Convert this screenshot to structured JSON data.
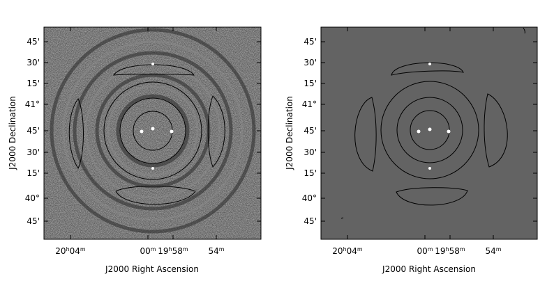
{
  "panels": [
    {
      "id": "left",
      "style": "noise",
      "ylabel": "J2000 Declination",
      "xlabel": "J2000 Right Ascension",
      "y_ticks": [
        {
          "label": "45'"
        },
        {
          "label": "30'"
        },
        {
          "label": "15'"
        },
        {
          "label": "41°"
        },
        {
          "label": "45'"
        },
        {
          "label": "30'"
        },
        {
          "label": "15'"
        },
        {
          "label": "40°"
        },
        {
          "label": "45'"
        }
      ],
      "x_ticks": [
        {
          "label": "20h04m"
        },
        {
          "label": "00m"
        },
        {
          "label": "19h58m"
        },
        {
          "label": "54m"
        }
      ]
    },
    {
      "id": "right",
      "style": "model",
      "ylabel": "J2000 Declination",
      "xlabel": "J2000 Right Ascension",
      "y_ticks": [
        {
          "label": "45'"
        },
        {
          "label": "30'"
        },
        {
          "label": "15'"
        },
        {
          "label": "41°"
        },
        {
          "label": "45'"
        },
        {
          "label": "30'"
        },
        {
          "label": "15'"
        },
        {
          "label": "40°"
        },
        {
          "label": "45'"
        }
      ],
      "x_ticks": [
        {
          "label": "20h04m"
        },
        {
          "label": "00m"
        },
        {
          "label": "19h58m"
        },
        {
          "label": "54m"
        }
      ]
    }
  ],
  "colors": {
    "background": "#ffffff",
    "model_fill": "#636363",
    "noise_base": "#555555",
    "contour": "#000000",
    "source": "#ffffff"
  }
}
